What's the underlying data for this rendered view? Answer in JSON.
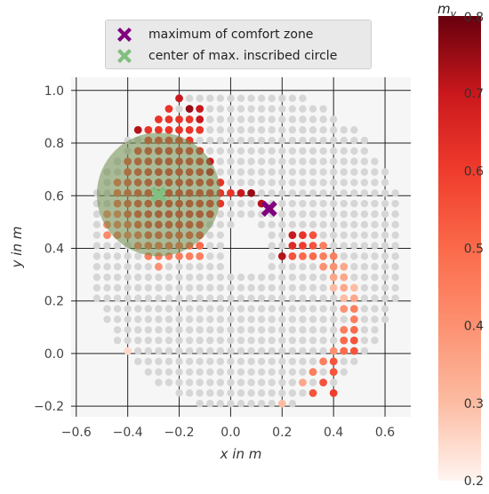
{
  "chart_data": {
    "type": "scatter",
    "xlabel": "x in m",
    "ylabel": "y in m",
    "xlim": [
      -0.62,
      0.7
    ],
    "ylim": [
      -0.24,
      1.05
    ],
    "xticks": [
      "−0.6",
      "−0.4",
      "−0.2",
      "0.0",
      "0.2",
      "0.4",
      "0.6"
    ],
    "xtick_values": [
      -0.6,
      -0.4,
      -0.2,
      0.0,
      0.2,
      0.4,
      0.6
    ],
    "yticks": [
      "−0.2",
      "0.0",
      "0.2",
      "0.4",
      "0.6",
      "0.8",
      "1.0"
    ],
    "ytick_values": [
      -0.2,
      0.0,
      0.2,
      0.4,
      0.6,
      0.8,
      1.0
    ],
    "grid": true,
    "legend": [
      {
        "label": "maximum of comfort zone",
        "marker": "X",
        "color": "#800080"
      },
      {
        "label": "center of max. inscribed circle",
        "marker": "X",
        "color": "#7fbf7f"
      }
    ],
    "legend_position": "top-center",
    "colorbar": {
      "label": "m",
      "label_subscript": "v",
      "min": 0.2,
      "max": 0.8,
      "ticks": [
        "0.2",
        "0.3",
        "0.4",
        "0.5",
        "0.6",
        "0.7",
        "0.8"
      ],
      "tick_values": [
        0.2,
        0.3,
        0.4,
        0.5,
        0.6,
        0.7,
        0.8
      ],
      "colormap": "Reds"
    },
    "maximum_comfort_zone": {
      "x": 0.15,
      "y": 0.55
    },
    "inscribed_circle": {
      "center_x": -0.28,
      "center_y": 0.605,
      "radius": 0.24
    },
    "grid_spacing": 0.04,
    "colored_points": [
      {
        "x": -0.2,
        "y": 0.97,
        "v": 0.7
      },
      {
        "x": -0.16,
        "y": 0.93,
        "v": 0.75
      },
      {
        "x": -0.12,
        "y": 0.93,
        "v": 0.7
      },
      {
        "x": -0.24,
        "y": 0.93,
        "v": 0.62
      },
      {
        "x": -0.28,
        "y": 0.89,
        "v": 0.62
      },
      {
        "x": -0.24,
        "y": 0.89,
        "v": 0.62
      },
      {
        "x": -0.2,
        "y": 0.89,
        "v": 0.62
      },
      {
        "x": -0.16,
        "y": 0.89,
        "v": 0.62
      },
      {
        "x": -0.12,
        "y": 0.89,
        "v": 0.7
      },
      {
        "x": -0.36,
        "y": 0.85,
        "v": 0.72
      },
      {
        "x": -0.32,
        "y": 0.85,
        "v": 0.62
      },
      {
        "x": -0.28,
        "y": 0.85,
        "v": 0.62
      },
      {
        "x": -0.24,
        "y": 0.85,
        "v": 0.62
      },
      {
        "x": -0.2,
        "y": 0.85,
        "v": 0.62
      },
      {
        "x": -0.16,
        "y": 0.85,
        "v": 0.62
      },
      {
        "x": -0.12,
        "y": 0.85,
        "v": 0.62
      },
      {
        "x": -0.32,
        "y": 0.81,
        "v": 0.6
      },
      {
        "x": -0.28,
        "y": 0.81,
        "v": 0.6
      },
      {
        "x": -0.24,
        "y": 0.81,
        "v": 0.6
      },
      {
        "x": -0.2,
        "y": 0.81,
        "v": 0.6
      },
      {
        "x": -0.16,
        "y": 0.81,
        "v": 0.62
      },
      {
        "x": -0.36,
        "y": 0.77,
        "v": 0.58
      },
      {
        "x": -0.32,
        "y": 0.77,
        "v": 0.6
      },
      {
        "x": -0.28,
        "y": 0.77,
        "v": 0.62
      },
      {
        "x": -0.24,
        "y": 0.77,
        "v": 0.62
      },
      {
        "x": -0.2,
        "y": 0.77,
        "v": 0.62
      },
      {
        "x": -0.16,
        "y": 0.77,
        "v": 0.62
      },
      {
        "x": -0.12,
        "y": 0.77,
        "v": 0.62
      },
      {
        "x": -0.4,
        "y": 0.73,
        "v": 0.55
      },
      {
        "x": -0.36,
        "y": 0.73,
        "v": 0.58
      },
      {
        "x": -0.32,
        "y": 0.73,
        "v": 0.6
      },
      {
        "x": -0.28,
        "y": 0.73,
        "v": 0.62
      },
      {
        "x": -0.24,
        "y": 0.73,
        "v": 0.62
      },
      {
        "x": -0.2,
        "y": 0.73,
        "v": 0.62
      },
      {
        "x": -0.16,
        "y": 0.73,
        "v": 0.62
      },
      {
        "x": -0.12,
        "y": 0.73,
        "v": 0.62
      },
      {
        "x": -0.08,
        "y": 0.73,
        "v": 0.7
      },
      {
        "x": -0.4,
        "y": 0.69,
        "v": 0.55
      },
      {
        "x": -0.36,
        "y": 0.69,
        "v": 0.58
      },
      {
        "x": -0.32,
        "y": 0.69,
        "v": 0.6
      },
      {
        "x": -0.28,
        "y": 0.69,
        "v": 0.62
      },
      {
        "x": -0.24,
        "y": 0.69,
        "v": 0.62
      },
      {
        "x": -0.2,
        "y": 0.69,
        "v": 0.62
      },
      {
        "x": -0.16,
        "y": 0.69,
        "v": 0.62
      },
      {
        "x": -0.12,
        "y": 0.69,
        "v": 0.62
      },
      {
        "x": -0.08,
        "y": 0.69,
        "v": 0.7
      },
      {
        "x": -0.44,
        "y": 0.65,
        "v": 0.5
      },
      {
        "x": -0.4,
        "y": 0.65,
        "v": 0.55
      },
      {
        "x": -0.36,
        "y": 0.65,
        "v": 0.58
      },
      {
        "x": -0.32,
        "y": 0.65,
        "v": 0.6
      },
      {
        "x": -0.28,
        "y": 0.65,
        "v": 0.62
      },
      {
        "x": -0.24,
        "y": 0.65,
        "v": 0.62
      },
      {
        "x": -0.2,
        "y": 0.65,
        "v": 0.62
      },
      {
        "x": -0.16,
        "y": 0.65,
        "v": 0.62
      },
      {
        "x": -0.12,
        "y": 0.65,
        "v": 0.62
      },
      {
        "x": -0.08,
        "y": 0.65,
        "v": 0.62
      },
      {
        "x": -0.04,
        "y": 0.65,
        "v": 0.62
      },
      {
        "x": -0.44,
        "y": 0.61,
        "v": 0.5
      },
      {
        "x": -0.4,
        "y": 0.61,
        "v": 0.55
      },
      {
        "x": -0.36,
        "y": 0.61,
        "v": 0.58
      },
      {
        "x": -0.32,
        "y": 0.61,
        "v": 0.6
      },
      {
        "x": -0.28,
        "y": 0.61,
        "v": 0.62
      },
      {
        "x": -0.24,
        "y": 0.61,
        "v": 0.62
      },
      {
        "x": -0.2,
        "y": 0.61,
        "v": 0.62
      },
      {
        "x": -0.16,
        "y": 0.61,
        "v": 0.62
      },
      {
        "x": -0.12,
        "y": 0.61,
        "v": 0.62
      },
      {
        "x": -0.08,
        "y": 0.61,
        "v": 0.62
      },
      {
        "x": -0.04,
        "y": 0.61,
        "v": 0.62
      },
      {
        "x": 0.0,
        "y": 0.61,
        "v": 0.62
      },
      {
        "x": 0.04,
        "y": 0.61,
        "v": 0.7
      },
      {
        "x": 0.08,
        "y": 0.61,
        "v": 0.75
      },
      {
        "x": -0.44,
        "y": 0.57,
        "v": 0.5
      },
      {
        "x": -0.4,
        "y": 0.57,
        "v": 0.55
      },
      {
        "x": -0.36,
        "y": 0.57,
        "v": 0.58
      },
      {
        "x": -0.32,
        "y": 0.57,
        "v": 0.6
      },
      {
        "x": -0.28,
        "y": 0.57,
        "v": 0.62
      },
      {
        "x": -0.24,
        "y": 0.57,
        "v": 0.62
      },
      {
        "x": -0.2,
        "y": 0.57,
        "v": 0.62
      },
      {
        "x": -0.16,
        "y": 0.57,
        "v": 0.62
      },
      {
        "x": -0.12,
        "y": 0.57,
        "v": 0.62
      },
      {
        "x": -0.08,
        "y": 0.57,
        "v": 0.62
      },
      {
        "x": -0.04,
        "y": 0.57,
        "v": 0.62
      },
      {
        "x": -0.48,
        "y": 0.53,
        "v": 0.42
      },
      {
        "x": -0.44,
        "y": 0.53,
        "v": 0.45
      },
      {
        "x": -0.4,
        "y": 0.53,
        "v": 0.55
      },
      {
        "x": -0.36,
        "y": 0.53,
        "v": 0.58
      },
      {
        "x": -0.32,
        "y": 0.53,
        "v": 0.6
      },
      {
        "x": -0.28,
        "y": 0.53,
        "v": 0.62
      },
      {
        "x": -0.24,
        "y": 0.53,
        "v": 0.62
      },
      {
        "x": -0.2,
        "y": 0.53,
        "v": 0.62
      },
      {
        "x": -0.16,
        "y": 0.53,
        "v": 0.62
      },
      {
        "x": -0.12,
        "y": 0.53,
        "v": 0.62
      },
      {
        "x": -0.08,
        "y": 0.53,
        "v": 0.62
      },
      {
        "x": -0.48,
        "y": 0.49,
        "v": 0.42
      },
      {
        "x": -0.44,
        "y": 0.49,
        "v": 0.45
      },
      {
        "x": -0.4,
        "y": 0.49,
        "v": 0.5
      },
      {
        "x": -0.36,
        "y": 0.49,
        "v": 0.55
      },
      {
        "x": -0.32,
        "y": 0.49,
        "v": 0.58
      },
      {
        "x": -0.28,
        "y": 0.49,
        "v": 0.6
      },
      {
        "x": -0.24,
        "y": 0.49,
        "v": 0.6
      },
      {
        "x": -0.2,
        "y": 0.49,
        "v": 0.6
      },
      {
        "x": -0.16,
        "y": 0.49,
        "v": 0.6
      },
      {
        "x": -0.12,
        "y": 0.49,
        "v": 0.6
      },
      {
        "x": -0.48,
        "y": 0.45,
        "v": 0.42
      },
      {
        "x": -0.44,
        "y": 0.45,
        "v": 0.45
      },
      {
        "x": -0.4,
        "y": 0.45,
        "v": 0.45
      },
      {
        "x": -0.36,
        "y": 0.45,
        "v": 0.5
      },
      {
        "x": -0.32,
        "y": 0.45,
        "v": 0.55
      },
      {
        "x": -0.28,
        "y": 0.45,
        "v": 0.55
      },
      {
        "x": -0.24,
        "y": 0.45,
        "v": 0.55
      },
      {
        "x": -0.2,
        "y": 0.45,
        "v": 0.55
      },
      {
        "x": -0.16,
        "y": 0.45,
        "v": 0.55
      },
      {
        "x": -0.12,
        "y": 0.45,
        "v": 0.55
      },
      {
        "x": -0.36,
        "y": 0.41,
        "v": 0.45
      },
      {
        "x": -0.32,
        "y": 0.41,
        "v": 0.5
      },
      {
        "x": -0.28,
        "y": 0.41,
        "v": 0.5
      },
      {
        "x": -0.24,
        "y": 0.41,
        "v": 0.5
      },
      {
        "x": -0.2,
        "y": 0.41,
        "v": 0.5
      },
      {
        "x": -0.16,
        "y": 0.41,
        "v": 0.5
      },
      {
        "x": -0.12,
        "y": 0.41,
        "v": 0.5
      },
      {
        "x": -0.32,
        "y": 0.37,
        "v": 0.45
      },
      {
        "x": -0.28,
        "y": 0.37,
        "v": 0.45
      },
      {
        "x": -0.24,
        "y": 0.37,
        "v": 0.45
      },
      {
        "x": -0.2,
        "y": 0.37,
        "v": 0.45
      },
      {
        "x": -0.16,
        "y": 0.37,
        "v": 0.45
      },
      {
        "x": -0.12,
        "y": 0.37,
        "v": 0.45
      },
      {
        "x": -0.28,
        "y": 0.33,
        "v": 0.4
      },
      {
        "x": 0.12,
        "y": 0.57,
        "v": 0.72
      },
      {
        "x": 0.24,
        "y": 0.45,
        "v": 0.7
      },
      {
        "x": 0.28,
        "y": 0.45,
        "v": 0.62
      },
      {
        "x": 0.32,
        "y": 0.45,
        "v": 0.55
      },
      {
        "x": 0.24,
        "y": 0.41,
        "v": 0.65
      },
      {
        "x": 0.28,
        "y": 0.41,
        "v": 0.6
      },
      {
        "x": 0.32,
        "y": 0.41,
        "v": 0.55
      },
      {
        "x": 0.36,
        "y": 0.41,
        "v": 0.45
      },
      {
        "x": 0.2,
        "y": 0.37,
        "v": 0.72
      },
      {
        "x": 0.24,
        "y": 0.37,
        "v": 0.55
      },
      {
        "x": 0.28,
        "y": 0.37,
        "v": 0.5
      },
      {
        "x": 0.32,
        "y": 0.37,
        "v": 0.5
      },
      {
        "x": 0.36,
        "y": 0.37,
        "v": 0.45
      },
      {
        "x": 0.4,
        "y": 0.37,
        "v": 0.45
      },
      {
        "x": 0.36,
        "y": 0.33,
        "v": 0.4
      },
      {
        "x": 0.4,
        "y": 0.33,
        "v": 0.4
      },
      {
        "x": 0.44,
        "y": 0.33,
        "v": 0.35
      },
      {
        "x": 0.4,
        "y": 0.29,
        "v": 0.35
      },
      {
        "x": 0.44,
        "y": 0.29,
        "v": 0.35
      },
      {
        "x": 0.4,
        "y": 0.25,
        "v": 0.3
      },
      {
        "x": 0.44,
        "y": 0.25,
        "v": 0.35
      },
      {
        "x": 0.48,
        "y": 0.25,
        "v": 0.3
      },
      {
        "x": 0.44,
        "y": 0.21,
        "v": 0.3
      },
      {
        "x": 0.48,
        "y": 0.21,
        "v": 0.35
      },
      {
        "x": 0.44,
        "y": 0.17,
        "v": 0.4
      },
      {
        "x": 0.48,
        "y": 0.17,
        "v": 0.45
      },
      {
        "x": 0.48,
        "y": 0.13,
        "v": 0.45
      },
      {
        "x": 0.44,
        "y": 0.09,
        "v": 0.45
      },
      {
        "x": 0.48,
        "y": 0.09,
        "v": 0.5
      },
      {
        "x": 0.44,
        "y": 0.05,
        "v": 0.5
      },
      {
        "x": 0.48,
        "y": 0.05,
        "v": 0.55
      },
      {
        "x": 0.4,
        "y": 0.01,
        "v": 0.4
      },
      {
        "x": 0.44,
        "y": 0.01,
        "v": 0.5
      },
      {
        "x": 0.48,
        "y": 0.01,
        "v": 0.55
      },
      {
        "x": 0.36,
        "y": -0.03,
        "v": 0.45
      },
      {
        "x": 0.4,
        "y": -0.03,
        "v": 0.55
      },
      {
        "x": 0.4,
        "y": -0.07,
        "v": 0.55
      },
      {
        "x": 0.28,
        "y": -0.11,
        "v": 0.35
      },
      {
        "x": 0.36,
        "y": -0.11,
        "v": 0.55
      },
      {
        "x": 0.32,
        "y": -0.07,
        "v": 0.45
      },
      {
        "x": 0.4,
        "y": -0.15,
        "v": 0.6
      },
      {
        "x": 0.32,
        "y": -0.15,
        "v": 0.55
      },
      {
        "x": 0.2,
        "y": -0.19,
        "v": 0.3
      },
      {
        "x": -0.4,
        "y": 0.01,
        "v": 0.25
      }
    ]
  }
}
